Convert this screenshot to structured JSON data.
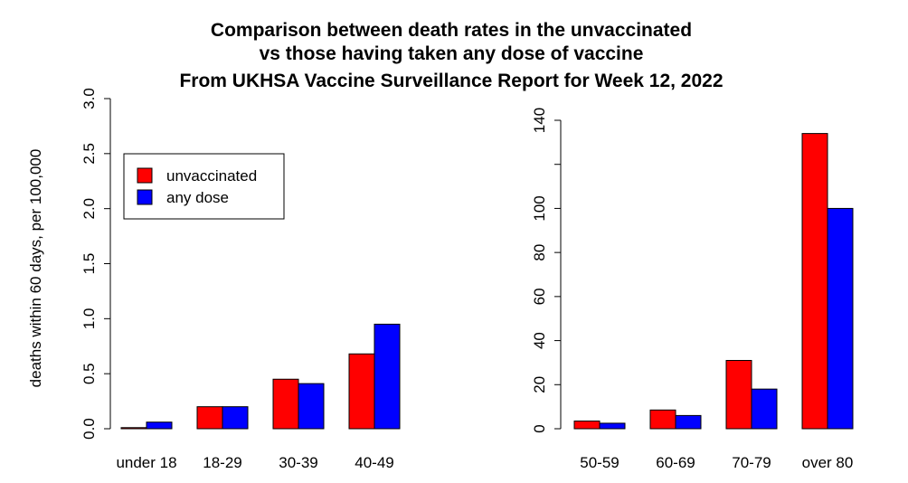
{
  "chart_data": {
    "title": [
      "Comparison between death rates in the unvaccinated",
      "vs those having taken any dose of vaccine",
      "From UKHSA Vaccine Surveillance Report for Week 12, 2022"
    ],
    "colors": {
      "unvaccinated": "#ff0000",
      "any dose": "#0000ff",
      "bar_border": "#000000"
    },
    "legend": {
      "placement": "top-left of left panel",
      "entries": [
        {
          "label": "unvaccinated",
          "color": "#ff0000"
        },
        {
          "label": "any dose",
          "color": "#0000ff"
        }
      ]
    },
    "panels": [
      {
        "type": "bar",
        "ylabel": "deaths within 60 days, per 100,000",
        "ylim": [
          0,
          3.0
        ],
        "yticks": [
          "0.0",
          "0.5",
          "1.0",
          "1.5",
          "2.0",
          "2.5",
          "3.0"
        ],
        "ytick_values": [
          0,
          0.5,
          1.0,
          1.5,
          2.0,
          2.5,
          3.0
        ],
        "categories": [
          "under 18",
          "18-29",
          "30-39",
          "40-49"
        ],
        "series": [
          {
            "name": "unvaccinated",
            "values": [
              0.01,
              0.2,
              0.45,
              0.68
            ]
          },
          {
            "name": "any dose",
            "values": [
              0.06,
              0.2,
              0.41,
              0.95
            ]
          }
        ]
      },
      {
        "type": "bar",
        "ylabel": "",
        "ylim": [
          0,
          140
        ],
        "yticks": [
          "0",
          "20",
          "40",
          "60",
          "80",
          "100",
          "140"
        ],
        "ytick_values": [
          0,
          20,
          40,
          60,
          80,
          100,
          140
        ],
        "extra_tick_marks": [
          120
        ],
        "categories": [
          "50-59",
          "60-69",
          "70-79",
          "over 80"
        ],
        "series": [
          {
            "name": "unvaccinated",
            "values": [
              3.5,
              8.5,
              31,
              134
            ]
          },
          {
            "name": "any dose",
            "values": [
              2.5,
              6,
              18,
              100
            ]
          }
        ]
      }
    ]
  }
}
